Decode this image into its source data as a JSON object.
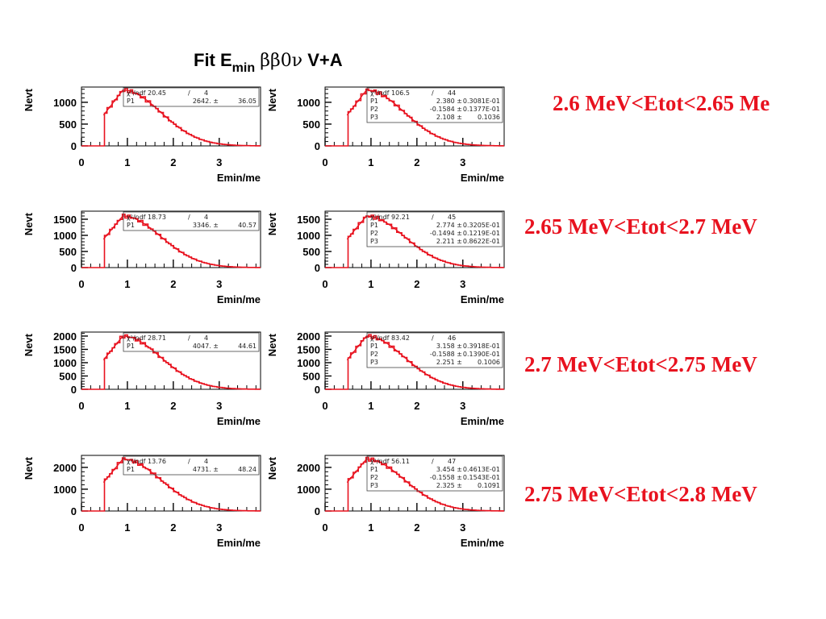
{
  "title": {
    "prefix": "Fit E",
    "subscript": "min",
    "greek": "ββ0ν",
    "suffix": "V+A"
  },
  "colors": {
    "curve": "#e8121f",
    "histogram": "#e8121f",
    "label": "#e8121f",
    "axis": "#000000"
  },
  "range_labels": [
    "2.6 MeV<Etot<2.65 Me",
    "2.65 MeV<Etot<2.7 MeV",
    "2.7 MeV<Etot<2.75 MeV",
    "2.75 MeV<Etot<2.8 MeV"
  ],
  "chart_data": [
    {
      "type": "line",
      "row": 0,
      "col": 0,
      "xlabel": "Emin/me",
      "ylabel": "Nevt",
      "xlim": [
        0,
        3.9
      ],
      "ylim": [
        0,
        1350
      ],
      "xticks": [
        0,
        1,
        2,
        3
      ],
      "yticks": [
        0,
        500,
        1000
      ],
      "peak": 1280,
      "stats": [
        {
          "name": "χ²/ndf 20.45",
          "value": "/",
          "error": "4"
        },
        {
          "name": "P1",
          "value": "2642. ±",
          "error": "36.05"
        }
      ]
    },
    {
      "type": "line",
      "row": 0,
      "col": 1,
      "xlabel": "Emin/me",
      "ylabel": "Nevt",
      "xlim": [
        0,
        3.9
      ],
      "ylim": [
        0,
        1350
      ],
      "xticks": [
        0,
        1,
        2,
        3
      ],
      "yticks": [
        0,
        500,
        1000
      ],
      "peak": 1280,
      "stats": [
        {
          "name": "χ²/ndf 106.5",
          "value": "/",
          "error": "44"
        },
        {
          "name": "P1",
          "value": "2.380 ±",
          "error": "0.3081E-01"
        },
        {
          "name": "P2",
          "value": "-0.1584 ±",
          "error": "0.1377E-01"
        },
        {
          "name": "P3",
          "value": "2.108 ±",
          "error": "0.1036"
        }
      ]
    },
    {
      "type": "line",
      "row": 1,
      "col": 0,
      "xlabel": "Emin/me",
      "ylabel": "Nevt",
      "xlim": [
        0,
        3.9
      ],
      "ylim": [
        0,
        1750
      ],
      "xticks": [
        0,
        1,
        2,
        3
      ],
      "yticks": [
        0,
        500,
        1000,
        1500
      ],
      "peak": 1600,
      "stats": [
        {
          "name": "χ²/ndf 18.73",
          "value": "/",
          "error": "4"
        },
        {
          "name": "P1",
          "value": "3346. ±",
          "error": "40.57"
        }
      ]
    },
    {
      "type": "line",
      "row": 1,
      "col": 1,
      "xlabel": "Emin/me",
      "ylabel": "Nevt",
      "xlim": [
        0,
        3.9
      ],
      "ylim": [
        0,
        1750
      ],
      "xticks": [
        0,
        1,
        2,
        3
      ],
      "yticks": [
        0,
        500,
        1000,
        1500
      ],
      "peak": 1600,
      "stats": [
        {
          "name": "χ²/ndf 92.21",
          "value": "/",
          "error": "45"
        },
        {
          "name": "P1",
          "value": "2.774 ±",
          "error": "0.3205E-01"
        },
        {
          "name": "P2",
          "value": "-0.1494 ±",
          "error": "0.1219E-01"
        },
        {
          "name": "P3",
          "value": "2.211 ±",
          "error": "0.8622E-01"
        }
      ]
    },
    {
      "type": "line",
      "row": 2,
      "col": 0,
      "xlabel": "Emin/me",
      "ylabel": "Nevt",
      "xlim": [
        0,
        3.9
      ],
      "ylim": [
        0,
        2150
      ],
      "xticks": [
        0,
        1,
        2,
        3
      ],
      "yticks": [
        0,
        500,
        1000,
        1500,
        2000
      ],
      "peak": 2000,
      "stats": [
        {
          "name": "χ²/ndf 28.71",
          "value": "/",
          "error": "4"
        },
        {
          "name": "P1",
          "value": "4047. ±",
          "error": "44.61"
        }
      ]
    },
    {
      "type": "line",
      "row": 2,
      "col": 1,
      "xlabel": "Emin/me",
      "ylabel": "Nevt",
      "xlim": [
        0,
        3.9
      ],
      "ylim": [
        0,
        2150
      ],
      "xticks": [
        0,
        1,
        2,
        3
      ],
      "yticks": [
        0,
        500,
        1000,
        1500,
        2000
      ],
      "peak": 2000,
      "stats": [
        {
          "name": "χ²/ndf 83.42",
          "value": "/",
          "error": "46"
        },
        {
          "name": "P1",
          "value": "3.158 ±",
          "error": "0.3918E-01"
        },
        {
          "name": "P2",
          "value": "-0.1588 ±",
          "error": "0.1390E-01"
        },
        {
          "name": "P3",
          "value": "2.251 ±",
          "error": "0.1006"
        }
      ]
    },
    {
      "type": "line",
      "row": 3,
      "col": 0,
      "xlabel": "Emin/me",
      "ylabel": "Nevt",
      "xlim": [
        0,
        3.9
      ],
      "ylim": [
        0,
        2550
      ],
      "xticks": [
        0,
        1,
        2,
        3
      ],
      "yticks": [
        0,
        1000,
        2000
      ],
      "peak": 2380,
      "stats": [
        {
          "name": "χ²/ndf 13.76",
          "value": "/",
          "error": "4"
        },
        {
          "name": "P1",
          "value": "4731. ±",
          "error": "48.24"
        }
      ]
    },
    {
      "type": "line",
      "row": 3,
      "col": 1,
      "xlabel": "Emin/me",
      "ylabel": "Nevt",
      "xlim": [
        0,
        3.9
      ],
      "ylim": [
        0,
        2550
      ],
      "xticks": [
        0,
        1,
        2,
        3
      ],
      "yticks": [
        0,
        1000,
        2000
      ],
      "peak": 2380,
      "stats": [
        {
          "name": "χ²/ndf 56.11",
          "value": "/",
          "error": "47"
        },
        {
          "name": "P1",
          "value": "3.454 ±",
          "error": "0.4613E-01"
        },
        {
          "name": "P2",
          "value": "-0.1558 ±",
          "error": "0.1543E-01"
        },
        {
          "name": "P3",
          "value": "2.325 ±",
          "error": "0.1091"
        }
      ]
    }
  ]
}
